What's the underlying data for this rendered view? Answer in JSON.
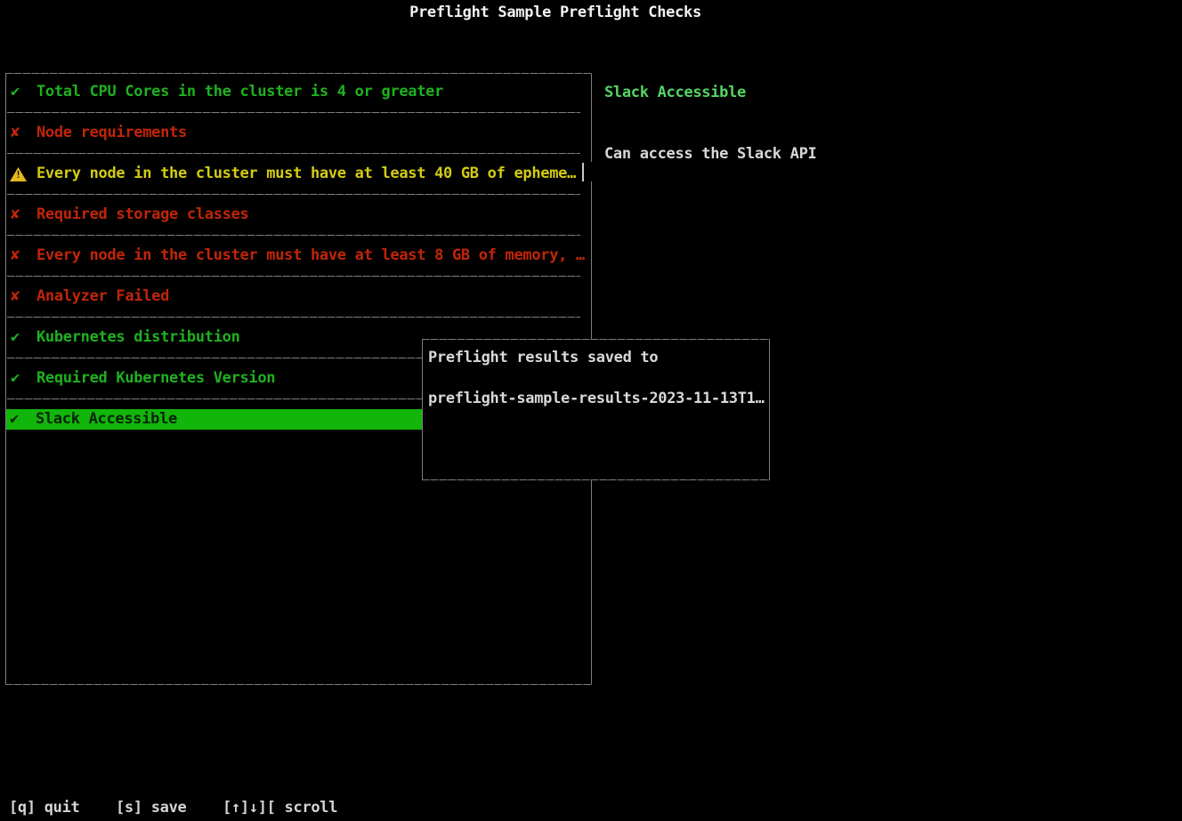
{
  "app": {
    "title": "Preflight Sample Preflight Checks"
  },
  "checks": [
    {
      "status": "pass",
      "label": "Total CPU Cores in the cluster is 4 or greater",
      "selected": false
    },
    {
      "status": "fail",
      "label": "Node requirements",
      "selected": false
    },
    {
      "status": "warn",
      "label": "Every node in the cluster must have at least 40 GB of epheme…",
      "selected": false
    },
    {
      "status": "fail",
      "label": "Required storage classes",
      "selected": false
    },
    {
      "status": "fail",
      "label": "Every node in the cluster must have at least 8 GB of memory, …",
      "selected": false
    },
    {
      "status": "fail",
      "label": "Analyzer Failed",
      "selected": false
    },
    {
      "status": "pass",
      "label": "Kubernetes distribution",
      "selected": false
    },
    {
      "status": "pass",
      "label": "Required Kubernetes Version",
      "selected": false
    },
    {
      "status": "pass",
      "label": "Slack Accessible",
      "selected": true
    }
  ],
  "icons": {
    "pass": "✔",
    "fail": "✘",
    "warn": "warning-triangle",
    "warn_glyph": "!"
  },
  "detail": {
    "title": "Slack Accessible",
    "body": "Can access the Slack API"
  },
  "modal": {
    "line1": "Preflight results saved to",
    "line2": "preflight-sample-results-2023-11-13T1…"
  },
  "statusbar": {
    "quit": "[q] quit",
    "save": "[s] save",
    "scroll": "[↑]↓][ scroll"
  },
  "colors": {
    "pass": "#1fb11f",
    "fail": "#c22508",
    "warn": "#d3cc15",
    "warn_icon": "#e8b71b",
    "selected_bg": "#12b50a",
    "selected_fg": "#062406",
    "detail_title": "#55d565",
    "border": "#7e7e7e",
    "text": "#d8d8d8",
    "background": "#000000"
  }
}
